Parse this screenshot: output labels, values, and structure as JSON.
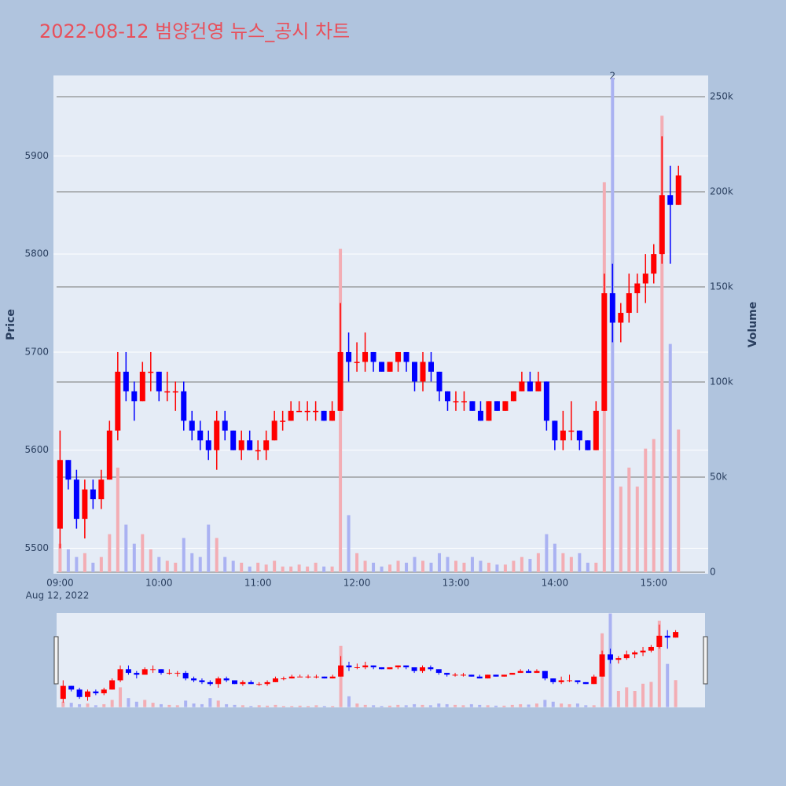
{
  "chart_data": {
    "type": "candlestick",
    "title": "2022-08-12 범양건영 뉴스_공시 차트",
    "y_label": "Price",
    "y2_label": "Volume",
    "x_date_label": "Aug 12, 2022",
    "increasing_color": "#ff0000",
    "decreasing_color": "#0000ff",
    "volume_increasing_color": "#f3adb4",
    "volume_decreasing_color": "#aab2f2",
    "xlim": [
      "2022-08-12 08:56",
      "2022-08-12 15:33"
    ],
    "xticks": [
      {
        "value": "2022-08-12 09:00",
        "label": "09:00"
      },
      {
        "value": "2022-08-12 10:00",
        "label": "10:00"
      },
      {
        "value": "2022-08-12 11:00",
        "label": "11:00"
      },
      {
        "value": "2022-08-12 12:00",
        "label": "12:00"
      },
      {
        "value": "2022-08-12 13:00",
        "label": "13:00"
      },
      {
        "value": "2022-08-12 14:00",
        "label": "14:00"
      },
      {
        "value": "2022-08-12 15:00",
        "label": "15:00"
      }
    ],
    "ylim": [
      5474,
      5982
    ],
    "yticks": [
      5500,
      5600,
      5700,
      5800,
      5900
    ],
    "y2lim": [
      -826,
      261157
    ],
    "y2ticks": [
      0,
      {
        "value": 50000,
        "label": "50k"
      },
      {
        "value": 100000,
        "label": "100k"
      },
      {
        "value": 150000,
        "label": "150k"
      },
      {
        "value": 200000,
        "label": "200k"
      },
      {
        "value": 250000,
        "label": "250k"
      }
    ],
    "annotations": [
      {
        "text": "2",
        "x": "2022-08-12 14:35"
      }
    ],
    "x": [
      "2022-08-12 09:00",
      "2022-08-12 09:05",
      "2022-08-12 09:10",
      "2022-08-12 09:15",
      "2022-08-12 09:20",
      "2022-08-12 09:25",
      "2022-08-12 09:30",
      "2022-08-12 09:35",
      "2022-08-12 09:40",
      "2022-08-12 09:45",
      "2022-08-12 09:50",
      "2022-08-12 09:55",
      "2022-08-12 10:00",
      "2022-08-12 10:05",
      "2022-08-12 10:10",
      "2022-08-12 10:15",
      "2022-08-12 10:20",
      "2022-08-12 10:25",
      "2022-08-12 10:30",
      "2022-08-12 10:35",
      "2022-08-12 10:40",
      "2022-08-12 10:45",
      "2022-08-12 10:50",
      "2022-08-12 10:55",
      "2022-08-12 11:00",
      "2022-08-12 11:05",
      "2022-08-12 11:10",
      "2022-08-12 11:15",
      "2022-08-12 11:20",
      "2022-08-12 11:25",
      "2022-08-12 11:30",
      "2022-08-12 11:35",
      "2022-08-12 11:40",
      "2022-08-12 11:45",
      "2022-08-12 11:50",
      "2022-08-12 11:55",
      "2022-08-12 12:00",
      "2022-08-12 12:05",
      "2022-08-12 12:10",
      "2022-08-12 12:15",
      "2022-08-12 12:20",
      "2022-08-12 12:25",
      "2022-08-12 12:30",
      "2022-08-12 12:35",
      "2022-08-12 12:40",
      "2022-08-12 12:45",
      "2022-08-12 12:50",
      "2022-08-12 12:55",
      "2022-08-12 13:00",
      "2022-08-12 13:05",
      "2022-08-12 13:10",
      "2022-08-12 13:15",
      "2022-08-12 13:20",
      "2022-08-12 13:25",
      "2022-08-12 13:30",
      "2022-08-12 13:35",
      "2022-08-12 13:40",
      "2022-08-12 13:45",
      "2022-08-12 13:50",
      "2022-08-12 13:55",
      "2022-08-12 14:00",
      "2022-08-12 14:05",
      "2022-08-12 14:10",
      "2022-08-12 14:15",
      "2022-08-12 14:20",
      "2022-08-12 14:25",
      "2022-08-12 14:30",
      "2022-08-12 14:35",
      "2022-08-12 14:40",
      "2022-08-12 14:45",
      "2022-08-12 14:50",
      "2022-08-12 14:55",
      "2022-08-12 15:00",
      "2022-08-12 15:05",
      "2022-08-12 15:10",
      "2022-08-12 15:15"
    ],
    "open": [
      5520,
      5590,
      5570,
      5530,
      5560,
      5550,
      5570,
      5620,
      5680,
      5660,
      5650,
      5680,
      5680,
      5660,
      5660,
      5660,
      5630,
      5620,
      5610,
      5600,
      5630,
      5620,
      5600,
      5610,
      5600,
      5600,
      5610,
      5630,
      5630,
      5640,
      5640,
      5640,
      5640,
      5630,
      5640,
      5700,
      5690,
      5690,
      5700,
      5690,
      5680,
      5690,
      5700,
      5690,
      5670,
      5690,
      5680,
      5660,
      5650,
      5650,
      5650,
      5640,
      5630,
      5650,
      5640,
      5650,
      5660,
      5670,
      5660,
      5670,
      5630,
      5610,
      5620,
      5620,
      5610,
      5600,
      5640,
      5760,
      5730,
      5740,
      5760,
      5770,
      5780,
      5800,
      5860,
      5850
    ],
    "high": [
      5620,
      5590,
      5580,
      5570,
      5570,
      5580,
      5630,
      5700,
      5700,
      5670,
      5690,
      5700,
      5680,
      5680,
      5670,
      5670,
      5640,
      5630,
      5620,
      5640,
      5640,
      5620,
      5620,
      5620,
      5610,
      5620,
      5640,
      5640,
      5650,
      5650,
      5650,
      5650,
      5640,
      5650,
      5750,
      5720,
      5710,
      5720,
      5700,
      5690,
      5690,
      5700,
      5700,
      5690,
      5700,
      5700,
      5680,
      5660,
      5660,
      5660,
      5650,
      5650,
      5650,
      5650,
      5650,
      5660,
      5680,
      5680,
      5680,
      5670,
      5630,
      5640,
      5650,
      5620,
      5610,
      5650,
      5780,
      5790,
      5750,
      5780,
      5780,
      5800,
      5810,
      5920,
      5890,
      5890
    ],
    "low": [
      5500,
      5560,
      5520,
      5510,
      5540,
      5540,
      5570,
      5610,
      5650,
      5630,
      5650,
      5660,
      5650,
      5650,
      5640,
      5620,
      5610,
      5600,
      5590,
      5580,
      5610,
      5600,
      5590,
      5600,
      5590,
      5590,
      5610,
      5620,
      5630,
      5640,
      5630,
      5630,
      5630,
      5630,
      5640,
      5670,
      5680,
      5680,
      5680,
      5680,
      5680,
      5680,
      5680,
      5660,
      5660,
      5670,
      5650,
      5640,
      5640,
      5640,
      5640,
      5630,
      5630,
      5640,
      5640,
      5650,
      5660,
      5660,
      5660,
      5620,
      5600,
      5600,
      5610,
      5600,
      5600,
      5600,
      5640,
      5710,
      5710,
      5730,
      5740,
      5750,
      5770,
      5790,
      5790,
      5850
    ],
    "close": [
      5590,
      5570,
      5530,
      5560,
      5550,
      5570,
      5620,
      5680,
      5660,
      5650,
      5680,
      5680,
      5660,
      5660,
      5660,
      5630,
      5620,
      5610,
      5600,
      5630,
      5620,
      5600,
      5610,
      5600,
      5600,
      5610,
      5630,
      5630,
      5640,
      5640,
      5640,
      5640,
      5630,
      5640,
      5700,
      5690,
      5690,
      5700,
      5690,
      5680,
      5690,
      5700,
      5690,
      5670,
      5690,
      5680,
      5660,
      5650,
      5650,
      5650,
      5640,
      5630,
      5650,
      5640,
      5650,
      5660,
      5670,
      5660,
      5670,
      5630,
      5610,
      5620,
      5620,
      5610,
      5600,
      5640,
      5760,
      5730,
      5740,
      5760,
      5770,
      5780,
      5800,
      5860,
      5850,
      5880
    ],
    "volume": [
      15000,
      12000,
      8000,
      10000,
      5000,
      8000,
      20000,
      55000,
      25000,
      15000,
      20000,
      12000,
      8000,
      6000,
      5000,
      18000,
      10000,
      8000,
      25000,
      18000,
      8000,
      6000,
      5000,
      3000,
      5000,
      4000,
      6000,
      3000,
      3000,
      4000,
      3000,
      5000,
      3000,
      3000,
      170000,
      30000,
      10000,
      6000,
      5000,
      3000,
      4000,
      6000,
      5000,
      8000,
      6000,
      5000,
      10000,
      8000,
      6000,
      5000,
      8000,
      6000,
      5000,
      4000,
      4000,
      6000,
      8000,
      7000,
      10000,
      20000,
      15000,
      10000,
      8000,
      10000,
      5000,
      5000,
      205000,
      260000,
      45000,
      55000,
      45000,
      65000,
      70000,
      240000,
      120000,
      75000
    ]
  }
}
